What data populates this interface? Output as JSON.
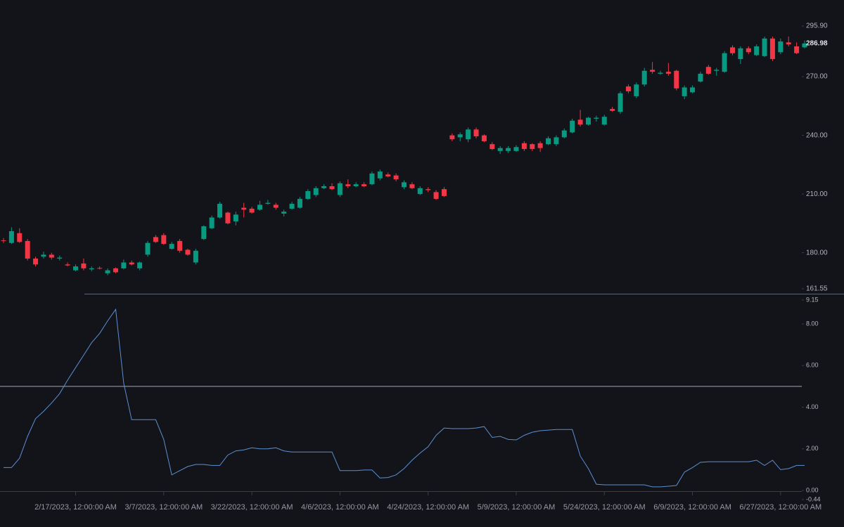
{
  "chart_data": [
    {
      "type": "candlestick",
      "up_color": "#089981",
      "down_color": "#f23645",
      "categories": [
        null,
        null,
        null,
        null,
        null,
        null,
        null,
        null,
        null,
        "2/17/2023, 12:00:00 AM",
        null,
        null,
        null,
        null,
        null,
        null,
        null,
        null,
        null,
        null,
        "3/7/2023, 12:00:00 AM",
        null,
        null,
        null,
        null,
        null,
        null,
        null,
        null,
        null,
        null,
        "3/22/2023, 12:00:00 AM",
        null,
        null,
        null,
        null,
        null,
        null,
        null,
        null,
        null,
        null,
        "4/6/2023, 12:00:00 AM",
        null,
        null,
        null,
        null,
        null,
        null,
        null,
        null,
        null,
        null,
        "4/24/2023, 12:00:00 AM",
        null,
        null,
        null,
        null,
        null,
        null,
        null,
        null,
        null,
        null,
        "5/9/2023, 12:00:00 AM",
        null,
        null,
        null,
        null,
        null,
        null,
        null,
        null,
        null,
        null,
        "5/24/2023, 12:00:00 AM",
        null,
        null,
        null,
        null,
        null,
        null,
        null,
        null,
        null,
        null,
        "6/9/2023, 12:00:00 AM",
        null,
        null,
        null,
        null,
        null,
        null,
        null,
        null,
        null,
        null,
        "6/27/2023, 12:00:00 AM",
        null,
        null,
        null
      ],
      "open": [
        186.3,
        185,
        190,
        186,
        177,
        178,
        179,
        177,
        174,
        171,
        174.5,
        171.5,
        172.2,
        169.5,
        172,
        172,
        175,
        172,
        179,
        188,
        189,
        182,
        186,
        181.5,
        175,
        187,
        192.5,
        198,
        200.5,
        196,
        203,
        202.5,
        202,
        205,
        204.5,
        200,
        202.5,
        203,
        207.5,
        209.5,
        213,
        214,
        209.5,
        215,
        214,
        215,
        215,
        218,
        220,
        219.5,
        213.5,
        215,
        210,
        212.5,
        211,
        212.5,
        240,
        239,
        238,
        243,
        240,
        235.5,
        232,
        232,
        232,
        236,
        235.5,
        236,
        235.5,
        235.5,
        239,
        241.5,
        248,
        245.5,
        248.5,
        245.5,
        253.5,
        252,
        265,
        260,
        266,
        273.5,
        271.5,
        272.5,
        273,
        260,
        262,
        267.5,
        275,
        273,
        272.5,
        285,
        279,
        284.5,
        281,
        280.5,
        289.5,
        282.5,
        287.5,
        285.5,
        285
      ],
      "high": [
        187.5,
        193,
        192.5,
        187,
        178,
        180.5,
        180,
        178.5,
        175,
        174,
        177,
        173,
        173,
        172,
        172.5,
        176.5,
        176,
        175.5,
        186,
        189,
        190,
        185.5,
        187,
        182,
        182,
        194,
        199,
        206,
        201,
        201,
        205.5,
        203.5,
        206.5,
        207,
        205.5,
        202,
        206,
        208.5,
        212.5,
        214,
        215,
        215.5,
        216.5,
        217.5,
        216,
        216,
        221.5,
        222.5,
        221,
        220.5,
        217,
        216,
        214,
        213.5,
        212,
        213.5,
        241,
        241.5,
        244,
        244,
        240.5,
        236.5,
        234.5,
        234.5,
        235,
        237,
        236,
        237,
        239.5,
        240,
        243.5,
        248.5,
        253,
        249.5,
        250,
        250.5,
        254.5,
        262.5,
        266,
        267,
        274.5,
        277.5,
        273,
        277,
        273.5,
        265.5,
        265.5,
        272.5,
        276,
        274.5,
        283,
        286,
        285.5,
        285.5,
        286.5,
        290.5,
        290.5,
        289.5,
        290.5,
        287.5,
        288.5
      ],
      "low": [
        185,
        184.5,
        185,
        176,
        173,
        177,
        176.5,
        176,
        173,
        170.5,
        171,
        170.5,
        171.5,
        168.5,
        169.5,
        171.5,
        173.5,
        171,
        178,
        185,
        184,
        181.5,
        180,
        178.5,
        174,
        186.5,
        192,
        197.5,
        194.5,
        194,
        198,
        200,
        201.5,
        204.5,
        202,
        198.5,
        202,
        202.5,
        207,
        208.5,
        212.5,
        212,
        208.5,
        213,
        213.5,
        213.5,
        214.5,
        217,
        218.5,
        216.5,
        212.5,
        212.5,
        209.5,
        211,
        207,
        208.5,
        237,
        237,
        236.5,
        238.5,
        236.5,
        232.5,
        230.5,
        231,
        231.5,
        232,
        232,
        231.5,
        235,
        234.5,
        238.5,
        241,
        244.5,
        245,
        247,
        245,
        252,
        251,
        261.5,
        259,
        265,
        271.5,
        271,
        270.5,
        263,
        258.5,
        261.5,
        267,
        271,
        270.5,
        272,
        281,
        276.5,
        281.5,
        280.5,
        280,
        278,
        281.5,
        285.5,
        281.5,
        284.5
      ],
      "close": [
        186,
        191,
        185.5,
        177,
        174,
        179,
        177.5,
        177.5,
        173.5,
        173,
        172,
        172,
        172,
        171,
        170,
        175,
        174,
        175,
        185,
        185.5,
        184.5,
        184.5,
        181,
        179,
        181,
        193.5,
        198,
        205,
        195,
        199.5,
        202,
        200.5,
        204.5,
        205.5,
        203,
        201,
        205,
        207.5,
        211.5,
        213,
        214,
        212.5,
        215.5,
        214,
        215,
        214,
        220.5,
        221.5,
        219,
        217.5,
        216,
        213,
        213,
        212,
        207.5,
        209,
        238,
        240.5,
        243,
        239.5,
        237,
        233,
        233.5,
        233.5,
        234,
        233,
        233,
        233.5,
        238.5,
        239,
        242.5,
        247.5,
        245.5,
        249,
        249,
        249.5,
        252.5,
        261.5,
        262.5,
        266,
        273,
        272.5,
        272,
        271.5,
        264,
        264.5,
        264.5,
        271.5,
        271.5,
        273.5,
        282,
        282,
        284.5,
        282.5,
        285.5,
        289.5,
        279,
        288,
        286.5,
        282,
        286.98
      ],
      "ylim": [
        161.55,
        295.9
      ],
      "yticks": [
        {
          "value": 161.55,
          "label": "161.55"
        },
        {
          "value": 180,
          "label": "180.00"
        },
        {
          "value": 210,
          "label": "210.00"
        },
        {
          "value": 240,
          "label": "240.00"
        },
        {
          "value": 270,
          "label": "270.00"
        },
        {
          "value": 295.9,
          "label": "295.90"
        }
      ]
    },
    {
      "type": "line",
      "color": "#5b8fd4",
      "values": [
        1.1,
        1.1,
        1.55,
        2.6,
        3.45,
        3.8,
        4.2,
        4.65,
        5.3,
        5.9,
        6.5,
        7.1,
        7.55,
        8.15,
        8.7,
        5.15,
        3.4,
        3.4,
        3.4,
        3.4,
        2.45,
        0.75,
        0.95,
        1.15,
        1.25,
        1.25,
        1.2,
        1.2,
        1.7,
        1.9,
        1.95,
        2.05,
        2.0,
        2.0,
        2.05,
        1.9,
        1.85,
        1.85,
        1.85,
        1.85,
        1.85,
        1.85,
        0.95,
        0.95,
        0.95,
        0.98,
        0.98,
        0.6,
        0.62,
        0.75,
        1.05,
        1.45,
        1.8,
        2.1,
        2.65,
        3.0,
        2.97,
        2.97,
        2.97,
        3.0,
        3.07,
        2.55,
        2.6,
        2.45,
        2.43,
        2.65,
        2.8,
        2.87,
        2.9,
        2.93,
        2.93,
        2.93,
        1.65,
        1.05,
        0.3,
        0.27,
        0.27,
        0.27,
        0.27,
        0.27,
        0.27,
        0.17,
        0.17,
        0.2,
        0.24,
        0.88,
        1.1,
        1.35,
        1.38,
        1.38,
        1.38,
        1.38,
        1.38,
        1.38,
        1.45,
        1.2,
        1.45,
        1.0,
        1.05,
        1.2,
        1.2
      ],
      "hline": 5,
      "ylim": [
        -0.44,
        9.15
      ],
      "yticks": [
        -0.44,
        {
          "value": 0,
          "label": "0.00"
        },
        {
          "value": 2,
          "label": "2.00"
        },
        {
          "value": 4,
          "label": "4.00"
        },
        {
          "value": 6,
          "label": "6.00"
        },
        {
          "value": 8,
          "label": "8.00"
        },
        9.15
      ]
    }
  ]
}
